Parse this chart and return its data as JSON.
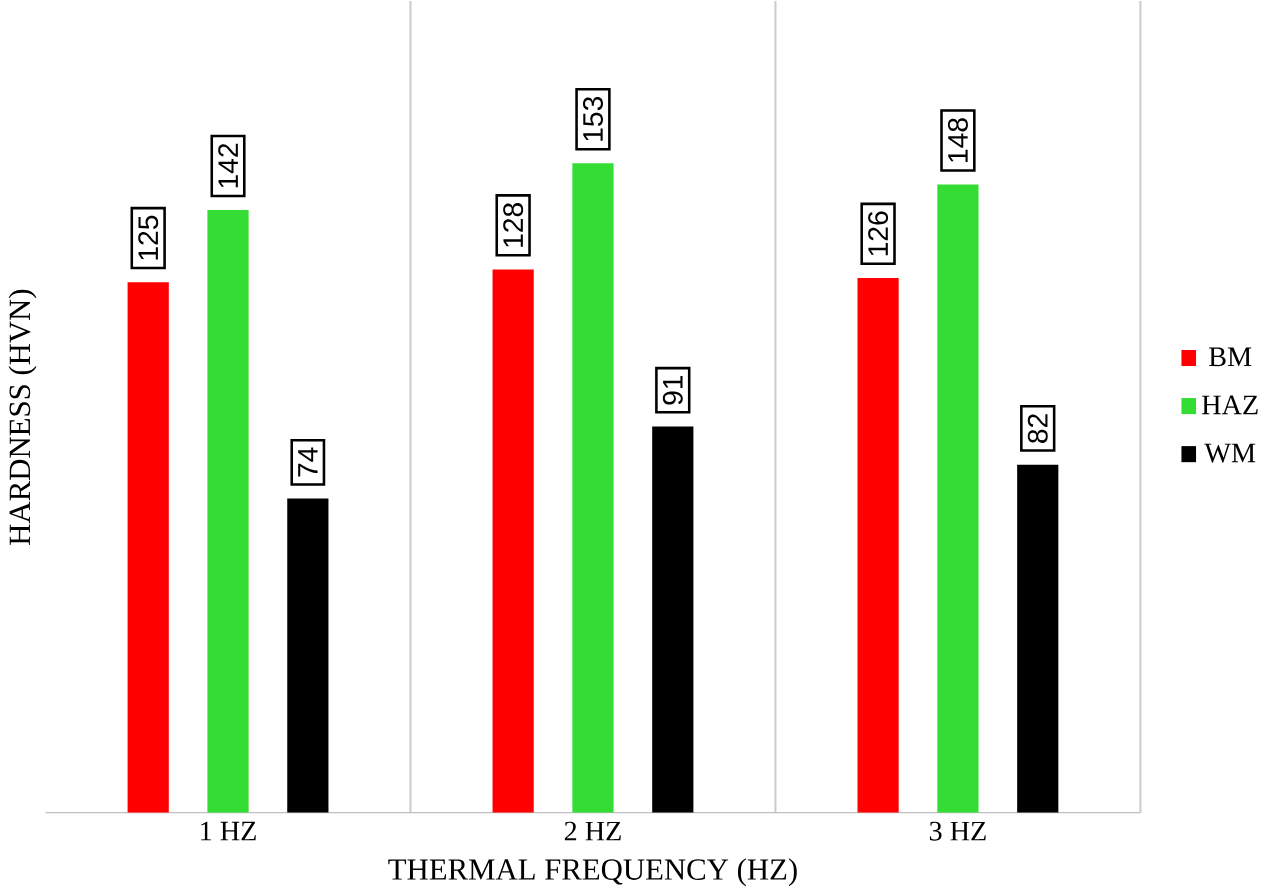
{
  "chart_data": {
    "type": "bar",
    "xlabel": "THERMAL FREQUENCY (HZ)",
    "ylabel": "HARDNESS (HVN)",
    "categories": [
      "1 HZ",
      "2 HZ",
      "3 HZ"
    ],
    "series": [
      {
        "name": "BM",
        "color": "#ff0000",
        "values": [
          125,
          128,
          126
        ]
      },
      {
        "name": "HAZ",
        "color": "#33dd33",
        "values": [
          142,
          153,
          148
        ]
      },
      {
        "name": "WM",
        "color": "#000000",
        "values": [
          74,
          91,
          82
        ]
      }
    ],
    "data_labels": true,
    "grid": "x",
    "legend": "right",
    "tick_labels": "x"
  }
}
